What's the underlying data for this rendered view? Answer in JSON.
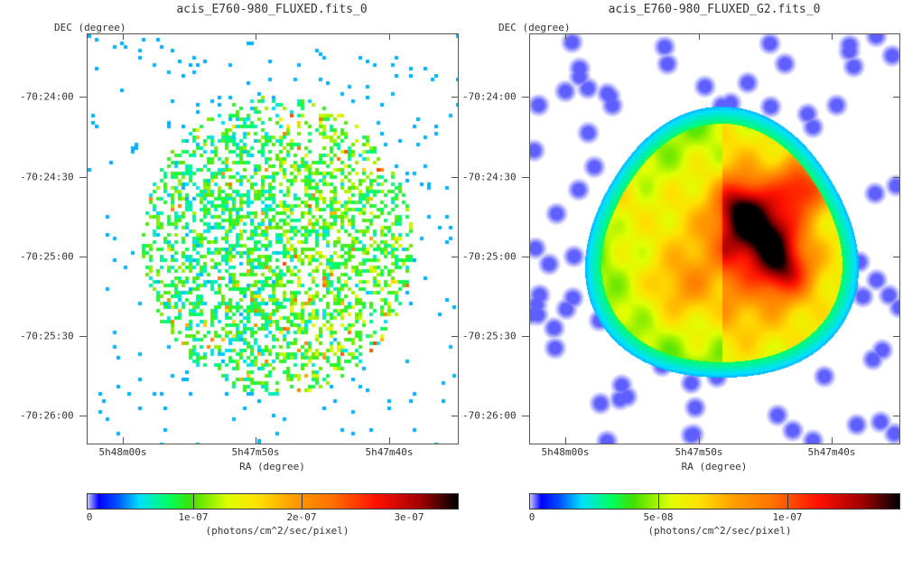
{
  "chart_data": [
    {
      "type": "heatmap",
      "title": "acis_E760-980_FLUXED.fits_0",
      "xlabel": "RA (degree)",
      "ylabel": "DEC (degree)",
      "x_ticks": [
        "5h48m00s",
        "5h47m50s",
        "5h47m40s"
      ],
      "y_ticks": [
        "-70:24:00",
        "-70:24:30",
        "-70:25:00",
        "-70:25:30",
        "-70:26:00"
      ],
      "colorbar": {
        "ticks": [
          "0",
          "1e-07",
          "2e-07",
          "3e-07"
        ],
        "label": "(photons/cm^2/sec/pixel)",
        "range": [
          0,
          3.45e-07
        ]
      }
    },
    {
      "type": "heatmap",
      "title": "acis_E760-980_FLUXED_G2.fits_0",
      "xlabel": "RA (degree)",
      "ylabel": "DEC (degree)",
      "x_ticks": [
        "5h48m00s",
        "5h47m50s",
        "5h47m40s"
      ],
      "y_ticks": [
        "-70:24:00",
        "-70:24:30",
        "-70:25:00",
        "-70:25:30",
        "-70:26:00"
      ],
      "colorbar": {
        "ticks": [
          "0",
          "5e-08",
          "1e-07"
        ],
        "label": "(photons/cm^2/sec/pixel)",
        "range": [
          0,
          1.38e-07
        ]
      }
    }
  ]
}
